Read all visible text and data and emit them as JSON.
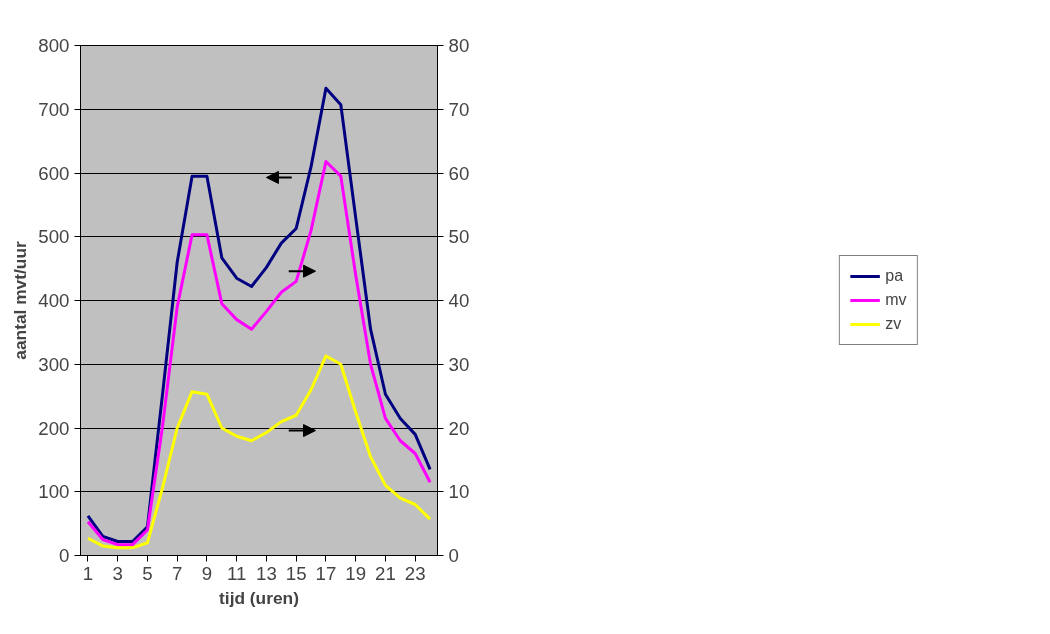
{
  "chart_data": {
    "type": "line",
    "xlabel": "tijd (uren)",
    "ylabel": "aantal mvt/uur",
    "x": [
      1,
      2,
      3,
      4,
      5,
      6,
      7,
      8,
      9,
      10,
      11,
      12,
      13,
      14,
      15,
      16,
      17,
      18,
      19,
      20,
      21,
      22,
      23,
      24
    ],
    "xlim": [
      0.5,
      24.5
    ],
    "xticks": [
      1,
      3,
      5,
      7,
      9,
      11,
      13,
      15,
      17,
      19,
      21,
      23
    ],
    "ylim": [
      0,
      800
    ],
    "yticks": [
      0,
      100,
      200,
      300,
      400,
      500,
      600,
      700,
      800
    ],
    "y2lim": [
      0,
      80
    ],
    "y2ticks": [
      0,
      10,
      20,
      30,
      40,
      50,
      60,
      70,
      80
    ],
    "grid": "y",
    "legend": "right",
    "marker": "none",
    "line_style": "solid",
    "series": [
      {
        "name": "pa",
        "color": "#000080",
        "values": [
          62,
          30,
          22,
          22,
          45,
          250,
          460,
          595,
          595,
          467,
          435,
          422,
          452,
          490,
          513,
          610,
          733,
          707,
          530,
          355,
          253,
          215,
          190,
          135
        ]
      },
      {
        "name": "mv",
        "color": "#ff00ff",
        "axis": "y2",
        "values": [
          5.3,
          2.5,
          1.7,
          1.7,
          4,
          20,
          39,
          50.3,
          50.3,
          39.5,
          37,
          35.5,
          38.3,
          41.3,
          43,
          51,
          61.8,
          59.5,
          44,
          30,
          21.5,
          18,
          16,
          11.5
        ]
      },
      {
        "name": "zv",
        "color": "#ffff00",
        "axis": "y2",
        "values": [
          2.7,
          1.5,
          1.2,
          1.2,
          2,
          10.5,
          20,
          25.7,
          25.3,
          20,
          18.7,
          18,
          19.3,
          21,
          22,
          26,
          31.3,
          30,
          22.5,
          15.5,
          11,
          9,
          8,
          5.7
        ]
      }
    ]
  }
}
